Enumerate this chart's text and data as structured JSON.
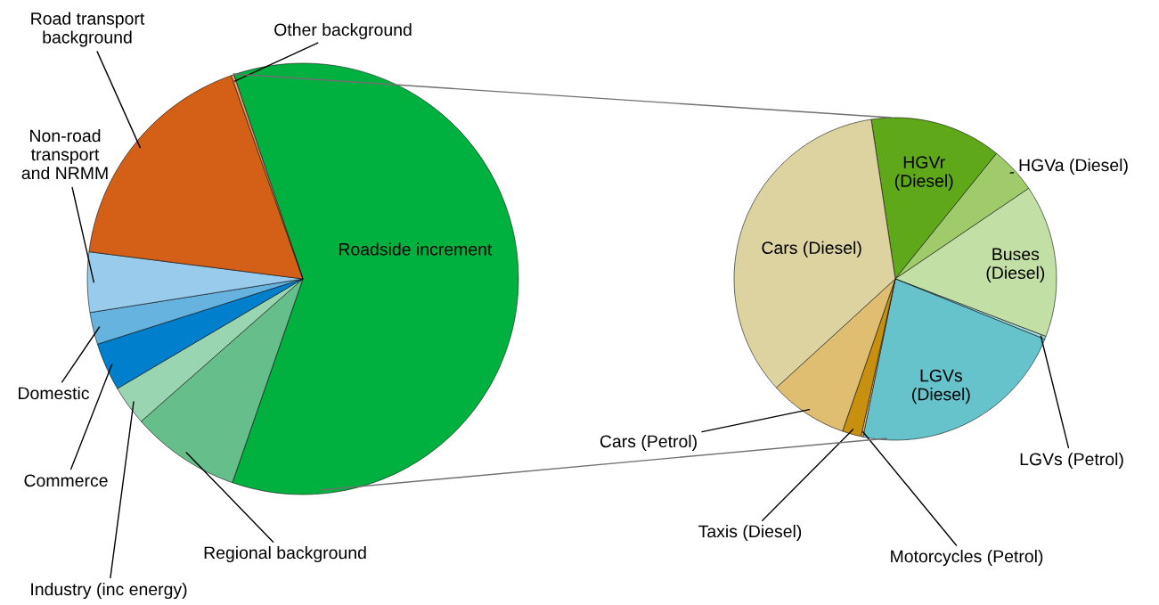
{
  "chart_data": [
    {
      "type": "pie",
      "categories": [
        "Roadside increment",
        "Regional background",
        "Industry (inc energy)",
        "Commerce",
        "Domestic",
        "Non-road\ntransport\nand NRMM",
        "Road transport\nbackground",
        "Other background"
      ],
      "values": [
        60.5,
        8.2,
        3.0,
        3.6,
        2.4,
        4.5,
        17.6,
        0.2
      ],
      "colors": [
        "#00b140",
        "#66bf8a",
        "#99d5b0",
        "#0080cc",
        "#66b3e0",
        "#99ccec",
        "#d45f17",
        "#e8a070"
      ]
    },
    {
      "type": "pie",
      "categories": [
        "HGVr\n(Diesel)",
        "HGVa (Diesel)",
        "Buses\n(Diesel)",
        "LGVs (Petrol)",
        "LGVs\n(Diesel)",
        "Motorcycles (Petrol)",
        "Taxis (Diesel)",
        "Cars (Petrol)",
        "Cars (Diesel)"
      ],
      "values": [
        13.2,
        4.7,
        15.3,
        0.3,
        22.1,
        0.2,
        1.9,
        7.9,
        34.4
      ],
      "colors": [
        "#5fa81a",
        "#9fcb6a",
        "#c2dfa5",
        "#a0d8de",
        "#66c3cc",
        "#e8c890",
        "#c8900f",
        "#dfbe72",
        "#ddd3a0"
      ]
    }
  ]
}
